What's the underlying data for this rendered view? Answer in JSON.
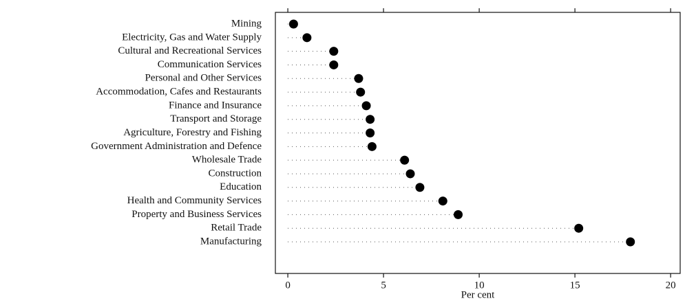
{
  "chart_data": {
    "type": "dot",
    "categories": [
      "Mining",
      "Electricity, Gas and Water Supply",
      "Cultural and Recreational Services",
      "Communication Services",
      "Personal and Other Services",
      "Accommodation, Cafes and Restaurants",
      "Finance and Insurance",
      "Transport and Storage",
      "Agriculture, Forestry and Fishing",
      "Government Administration and Defence",
      "Wholesale Trade",
      "Construction",
      "Education",
      "Health and Community Services",
      "Property and Business Services",
      "Retail Trade",
      "Manufacturing"
    ],
    "values": [
      0.3,
      1.0,
      2.4,
      2.4,
      3.7,
      3.8,
      4.1,
      4.3,
      4.3,
      4.4,
      6.1,
      6.4,
      6.9,
      8.1,
      8.9,
      15.2,
      17.9
    ],
    "color": "#000000",
    "xlabel": "Per cent",
    "xlim": [
      -0.65,
      20.5
    ],
    "xticks": [
      0,
      5,
      10,
      15,
      20
    ]
  }
}
